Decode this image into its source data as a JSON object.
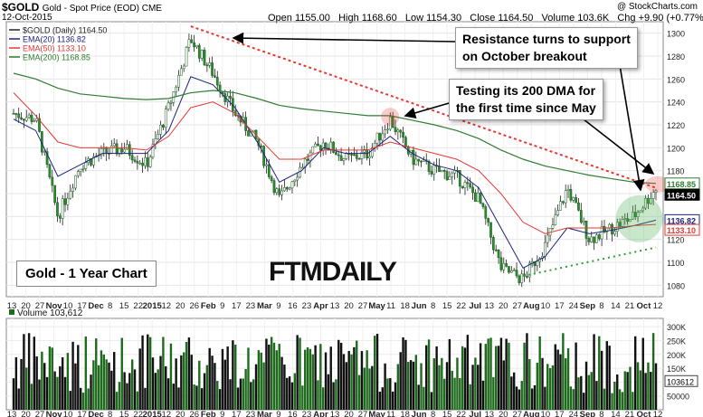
{
  "header": {
    "symbol": "$GOLD",
    "description": "Gold - Spot Price (EOD) CME",
    "date": "12-Oct-2015",
    "credit": "@ StockCharts.com",
    "open": "Open 1155.00",
    "high": "High 1168.60",
    "low": "Low 1154.30",
    "close": "Close 1164.50",
    "volume": "Volume 103.6K",
    "change": "Chg +9.90 (+0.77%)",
    "change_arrow": "▲"
  },
  "legend": {
    "price": "$GOLD (Daily) 1164.50",
    "ema20": "EMA(20) 1136.82",
    "ema50": "EMA(50) 1133.10",
    "ema200": "EMA(200) 1168.85"
  },
  "annotations": {
    "callout_resistance": "Resistance turns to support on October breakout",
    "callout_resistance_line1": "Resistance turns to support",
    "callout_resistance_line2": "on October breakout",
    "callout_testing_line1": "Testing its 200 DMA for",
    "callout_testing_line2": "the first time since May",
    "chart_label": "Gold - 1 Year Chart",
    "brand": "FTMDAILY"
  },
  "volume_panel": {
    "title": "Volume 103,612",
    "last_value": "103612"
  },
  "colors": {
    "price_bar": "#2e8b2e",
    "ema20": "#1a237e",
    "ema50": "#e53935",
    "ema200": "#2e7d32",
    "resistance_line": "#e53935",
    "support_line": "#2e9e2e",
    "volume_bar": "#1e6b1e"
  },
  "chart_data": {
    "type": "line",
    "title": "",
    "xlabel": "",
    "ylabel": "",
    "ylim": [
      1070,
      1310
    ],
    "grid": true,
    "legend_position": "top-left",
    "x_ticks": [
      "13",
      "20",
      "27",
      "Nov",
      "10",
      "17",
      "Dec",
      "8",
      "15",
      "22",
      "2015",
      "12",
      "20",
      "26",
      "Feb",
      "9",
      "17",
      "23",
      "Mar",
      "9",
      "16",
      "23",
      "Apr",
      "13",
      "20",
      "27",
      "May",
      "11",
      "18",
      "Jun",
      "8",
      "15",
      "22",
      "Jul",
      "13",
      "20",
      "27",
      "Aug",
      "10",
      "17",
      "24",
      "Sep",
      "8",
      "14",
      "21",
      "Oct",
      "12"
    ],
    "y_ticks": [
      1080,
      1100,
      1120,
      1140,
      1160,
      1180,
      1200,
      1220,
      1240,
      1260,
      1280,
      1300
    ],
    "right_labels": [
      "1168.85",
      "1164.50",
      "1136.82",
      "1133.10"
    ],
    "series": [
      {
        "name": "$GOLD (Daily)",
        "x": [
          "Oct 13",
          "Oct 27",
          "Nov 7",
          "Nov 17",
          "Dec 1",
          "Dec 15",
          "Dec 29",
          "Jan 12",
          "Jan 22",
          "Feb 2",
          "Feb 17",
          "Mar 2",
          "Mar 16",
          "Mar 30",
          "Apr 13",
          "Apr 27",
          "May 11",
          "May 18",
          "Jun 1",
          "Jun 15",
          "Jun 29",
          "Jul 13",
          "Jul 24",
          "Aug 5",
          "Aug 17",
          "Aug 24",
          "Sep 8",
          "Sep 21",
          "Oct 1",
          "Oct 12"
        ],
        "values": [
          1230,
          1225,
          1140,
          1185,
          1195,
          1200,
          1185,
          1235,
          1295,
          1265,
          1230,
          1205,
          1155,
          1185,
          1205,
          1190,
          1195,
          1225,
          1190,
          1180,
          1175,
          1155,
          1095,
          1085,
          1115,
          1165,
          1120,
          1130,
          1140,
          1164.5
        ]
      },
      {
        "name": "EMA(20)",
        "values": [
          1225,
          1215,
          1175,
          1185,
          1195,
          1195,
          1195,
          1215,
          1262,
          1255,
          1235,
          1205,
          1170,
          1180,
          1200,
          1195,
          1195,
          1210,
          1195,
          1185,
          1180,
          1165,
          1130,
          1095,
          1105,
          1130,
          1125,
          1128,
          1132,
          1136.82
        ]
      },
      {
        "name": "EMA(50)",
        "values": [
          1248,
          1228,
          1205,
          1200,
          1200,
          1200,
          1198,
          1210,
          1235,
          1240,
          1230,
          1210,
          1190,
          1190,
          1198,
          1198,
          1198,
          1205,
          1200,
          1195,
          1190,
          1180,
          1160,
          1135,
          1125,
          1130,
          1130,
          1130,
          1132,
          1133.1
        ]
      },
      {
        "name": "EMA(200)",
        "values": [
          1265,
          1260,
          1252,
          1247,
          1245,
          1243,
          1242,
          1243,
          1248,
          1250,
          1248,
          1243,
          1237,
          1234,
          1232,
          1230,
          1228,
          1228,
          1224,
          1220,
          1215,
          1208,
          1198,
          1190,
          1184,
          1180,
          1176,
          1173,
          1170,
          1168.85
        ]
      }
    ],
    "volume": {
      "title": "Volume 103,612",
      "y_ticks": [
        "50000",
        "100K",
        "150K",
        "200K",
        "250K",
        "300K"
      ],
      "last": 103612
    },
    "trendlines": [
      {
        "name": "resistance",
        "from": [
          "Jan 22",
          1306
        ],
        "to": [
          "Oct 12",
          1165
        ]
      },
      {
        "name": "support",
        "from": [
          "Aug 5",
          1088
        ],
        "to": [
          "Oct 12",
          1113
        ]
      }
    ]
  }
}
